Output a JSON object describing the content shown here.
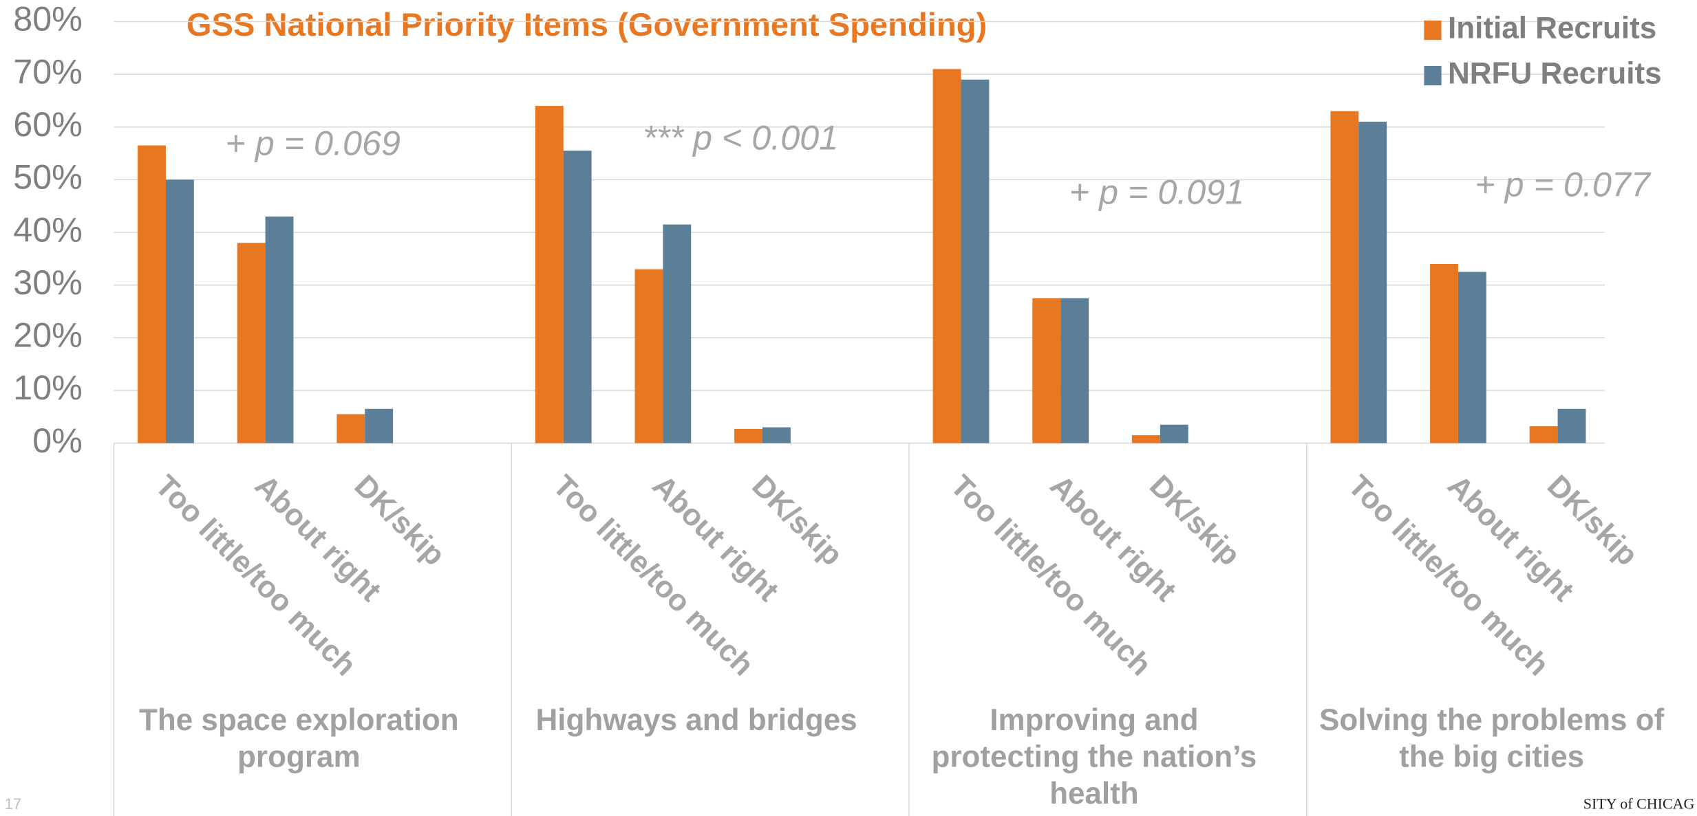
{
  "chart_data": {
    "type": "bar",
    "title": "GSS National Priority Items (Government Spending)",
    "groups": [
      "The space exploration program",
      "Highways and bridges",
      "Improving and protecting the nation’s health",
      "Solving the problems of the big cities"
    ],
    "annotations": [
      "+ p = 0.069",
      "*** p < 0.001",
      "+ p = 0.091",
      "+ p = 0.077"
    ],
    "categories": [
      "Too little/too much",
      "About right",
      "DK/skip",
      "Too little/too much",
      "About right",
      "DK/skip",
      "Too little/too much",
      "About right",
      "DK/skip",
      "Too little/too much",
      "About right",
      "DK/skip"
    ],
    "series": [
      {
        "name": "Initial Recruits",
        "color": "#e87722",
        "values": [
          56.5,
          38,
          5.5,
          64,
          33,
          2.7,
          71,
          27.5,
          1.5,
          63,
          34,
          3.2
        ]
      },
      {
        "name": "NRFU Recruits",
        "color": "#5b7f99",
        "values": [
          50,
          43,
          6.5,
          55.5,
          41.5,
          3,
          69,
          27.5,
          3.5,
          61,
          32.5,
          6.5
        ]
      }
    ],
    "ylim": [
      0,
      80
    ],
    "yticks": [
      {
        "value": 0,
        "label": "0%"
      },
      {
        "value": 10,
        "label": "10%"
      },
      {
        "value": 20,
        "label": "20%"
      },
      {
        "value": 30,
        "label": "30%"
      },
      {
        "value": 40,
        "label": "40%"
      },
      {
        "value": 50,
        "label": "50%"
      },
      {
        "value": 60,
        "label": "60%"
      },
      {
        "value": 70,
        "label": "70%"
      },
      {
        "value": 80,
        "label": "80%"
      }
    ],
    "grid": true,
    "legend": "top-right"
  },
  "page_number": "17",
  "footer": "SITY of CHICAG"
}
